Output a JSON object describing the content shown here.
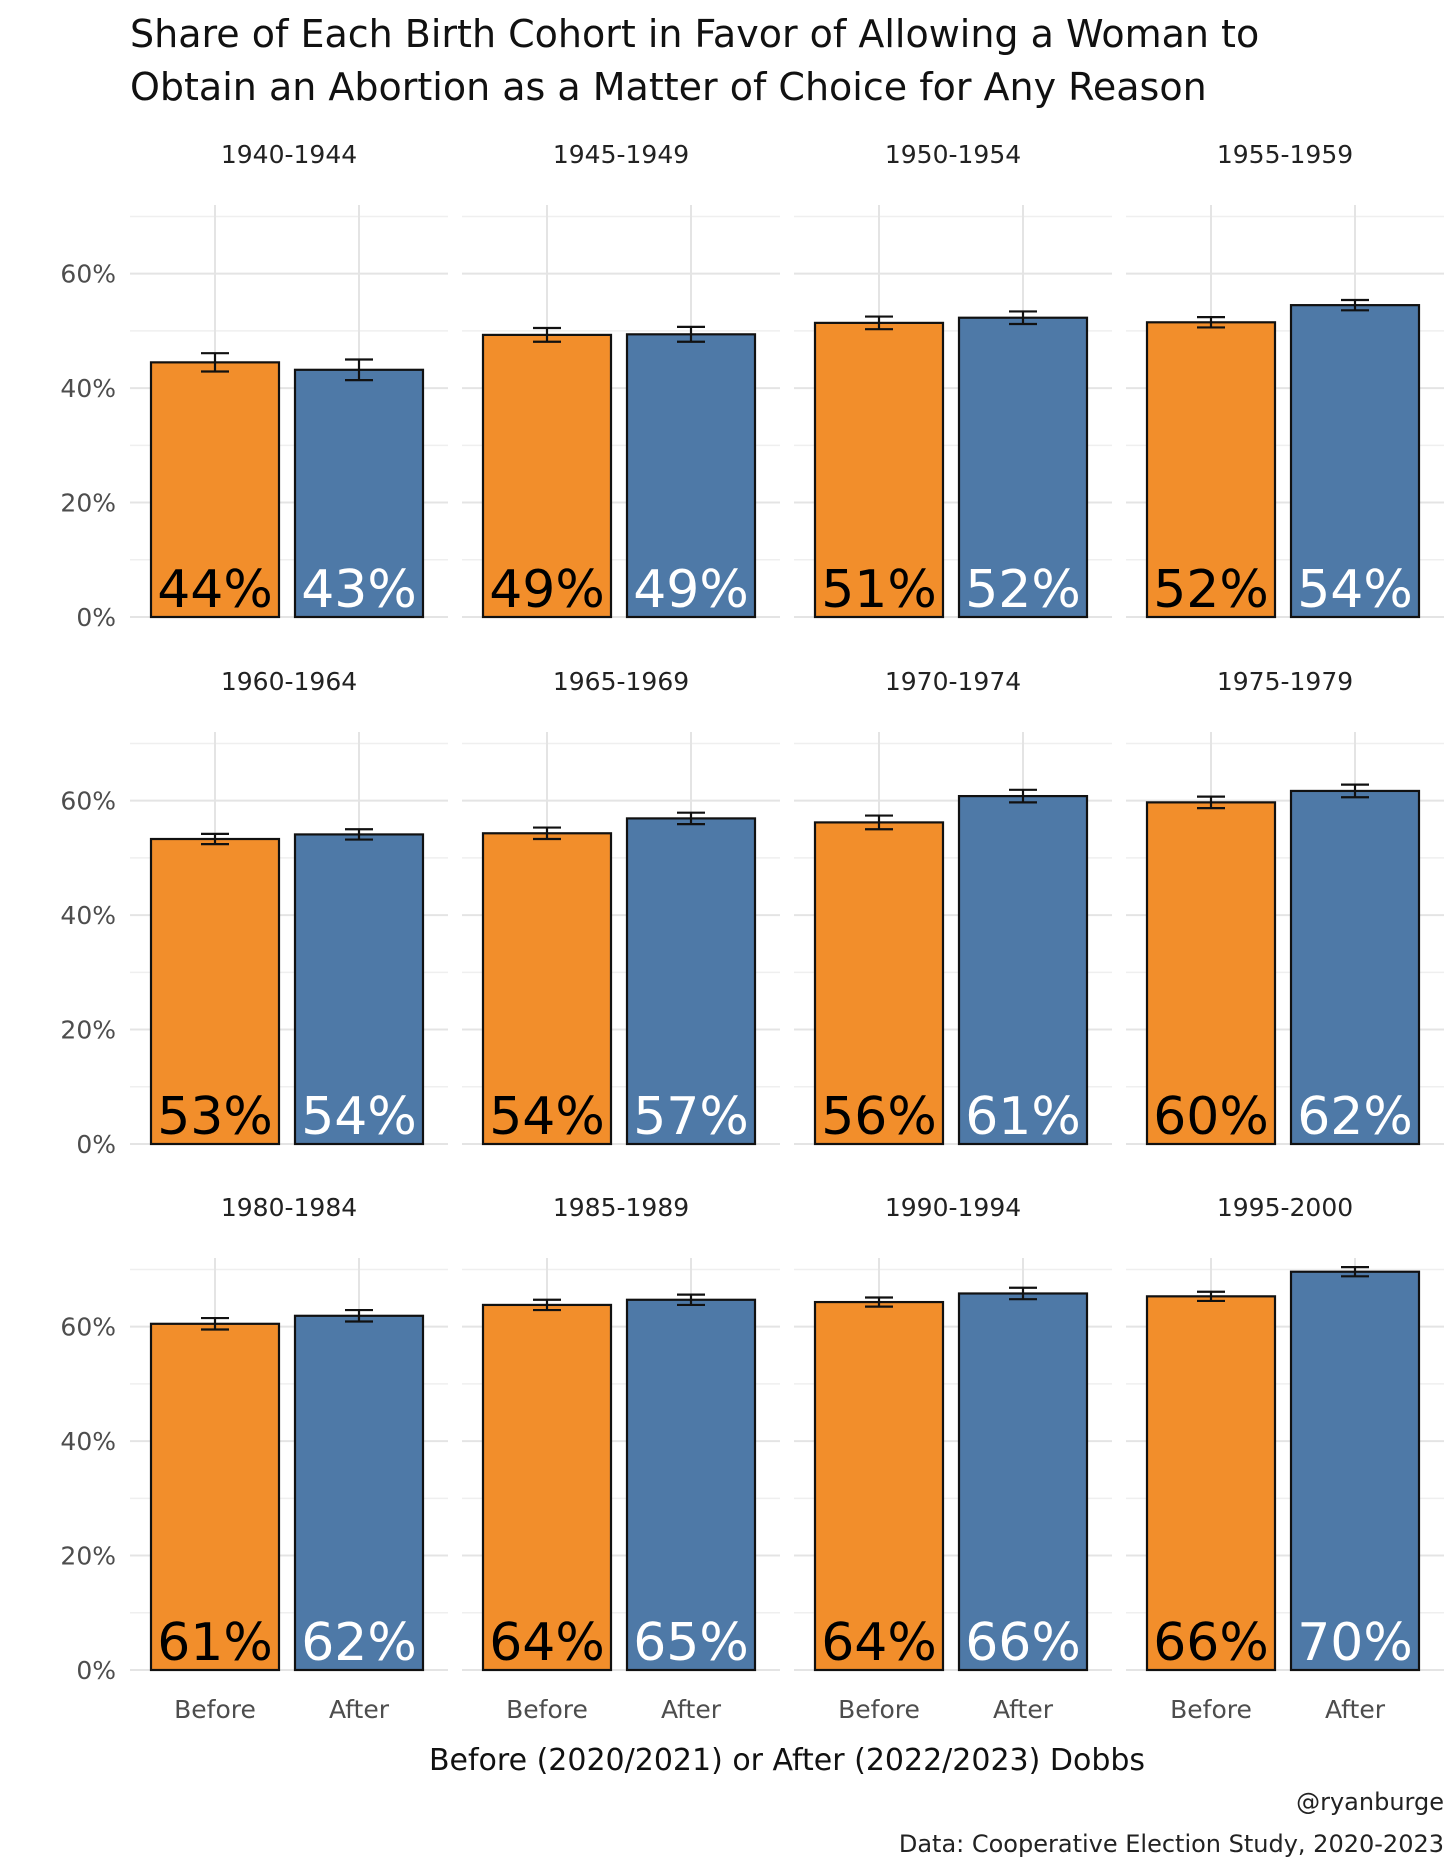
{
  "chart_data": {
    "type": "bar",
    "title": "Share of Each Birth Cohort in Favor of Allowing a Woman to Obtain an Abortion as a Matter of Choice for Any Reason",
    "title_lines": [
      "Share of Each Birth Cohort in Favor of Allowing a Woman to",
      "Obtain an Abortion as a Matter of Choice for Any Reason"
    ],
    "xlabel": "Before (2020/2021) or After (2022/2023) Dobbs",
    "ylabel": "",
    "ylim": [
      0,
      0.72
    ],
    "y_ticks": [
      0,
      0.2,
      0.4,
      0.6
    ],
    "y_tick_labels": [
      "0%",
      "20%",
      "40%",
      "60%"
    ],
    "categories": [
      "Before",
      "After"
    ],
    "colors": {
      "Before": "#f28e2b",
      "After": "#4e79a7"
    },
    "label_colors": {
      "Before": "#000000",
      "After": "#ffffff"
    },
    "grid": true,
    "legend": "none",
    "facets": [
      {
        "label": "1940-1944",
        "values": [
          0.445,
          0.432
        ],
        "ci": [
          [
            0.429,
            0.461
          ],
          [
            0.414,
            0.45
          ]
        ],
        "labels": [
          "44%",
          "43%"
        ]
      },
      {
        "label": "1945-1949",
        "values": [
          0.493,
          0.494
        ],
        "ci": [
          [
            0.481,
            0.505
          ],
          [
            0.481,
            0.507
          ]
        ],
        "labels": [
          "49%",
          "49%"
        ]
      },
      {
        "label": "1950-1954",
        "values": [
          0.514,
          0.523
        ],
        "ci": [
          [
            0.503,
            0.525
          ],
          [
            0.512,
            0.534
          ]
        ],
        "labels": [
          "51%",
          "52%"
        ]
      },
      {
        "label": "1955-1959",
        "values": [
          0.515,
          0.545
        ],
        "ci": [
          [
            0.506,
            0.524
          ],
          [
            0.536,
            0.554
          ]
        ],
        "labels": [
          "52%",
          "54%"
        ]
      },
      {
        "label": "1960-1964",
        "values": [
          0.533,
          0.541
        ],
        "ci": [
          [
            0.524,
            0.542
          ],
          [
            0.532,
            0.55
          ]
        ],
        "labels": [
          "53%",
          "54%"
        ]
      },
      {
        "label": "1965-1969",
        "values": [
          0.543,
          0.569
        ],
        "ci": [
          [
            0.533,
            0.553
          ],
          [
            0.559,
            0.579
          ]
        ],
        "labels": [
          "54%",
          "57%"
        ]
      },
      {
        "label": "1970-1974",
        "values": [
          0.562,
          0.608
        ],
        "ci": [
          [
            0.55,
            0.574
          ],
          [
            0.597,
            0.619
          ]
        ],
        "labels": [
          "56%",
          "61%"
        ]
      },
      {
        "label": "1975-1979",
        "values": [
          0.597,
          0.617
        ],
        "ci": [
          [
            0.587,
            0.607
          ],
          [
            0.606,
            0.628
          ]
        ],
        "labels": [
          "60%",
          "62%"
        ]
      },
      {
        "label": "1980-1984",
        "values": [
          0.605,
          0.619
        ],
        "ci": [
          [
            0.595,
            0.615
          ],
          [
            0.609,
            0.629
          ]
        ],
        "labels": [
          "61%",
          "62%"
        ]
      },
      {
        "label": "1985-1989",
        "values": [
          0.638,
          0.647
        ],
        "ci": [
          [
            0.629,
            0.647
          ],
          [
            0.638,
            0.656
          ]
        ],
        "labels": [
          "64%",
          "65%"
        ]
      },
      {
        "label": "1990-1994",
        "values": [
          0.643,
          0.658
        ],
        "ci": [
          [
            0.635,
            0.651
          ],
          [
            0.648,
            0.668
          ]
        ],
        "labels": [
          "64%",
          "66%"
        ]
      },
      {
        "label": "1995-2000",
        "values": [
          0.653,
          0.696
        ],
        "ci": [
          [
            0.645,
            0.661
          ],
          [
            0.688,
            0.704
          ]
        ],
        "labels": [
          "66%",
          "70%"
        ]
      }
    ],
    "caption_lines": [
      "@ryanburge",
      "Data: Cooperative Election Study, 2020-2023"
    ]
  }
}
